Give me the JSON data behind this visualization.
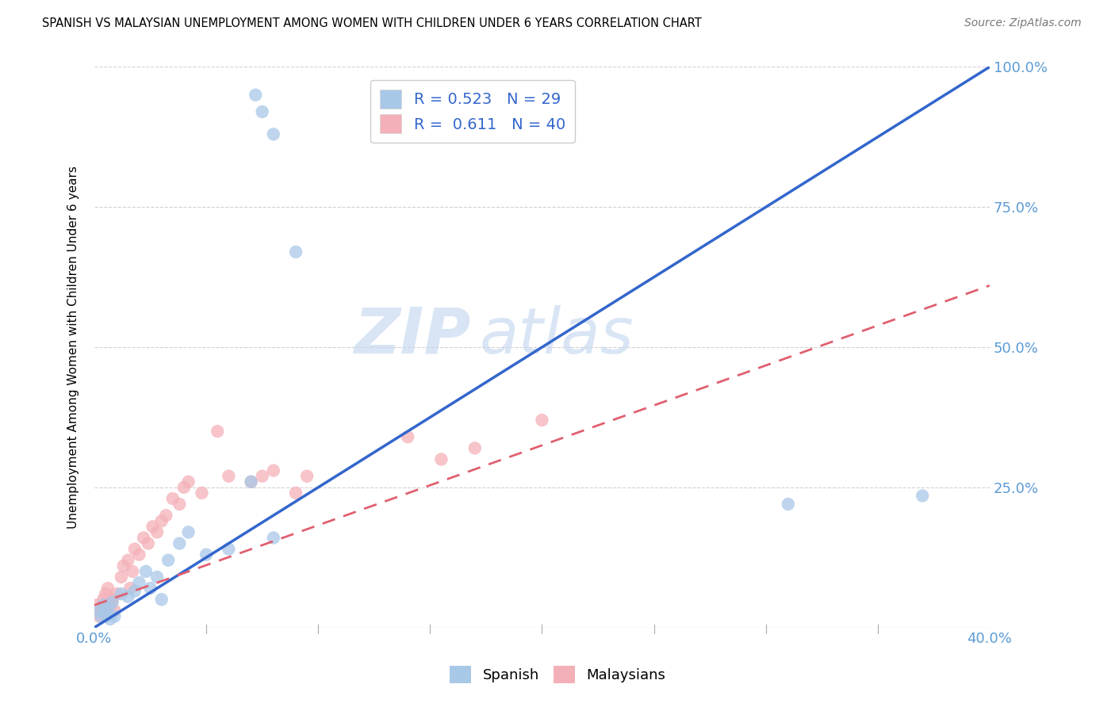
{
  "title": "SPANISH VS MALAYSIAN UNEMPLOYMENT AMONG WOMEN WITH CHILDREN UNDER 6 YEARS CORRELATION CHART",
  "source": "Source: ZipAtlas.com",
  "ylabel": "Unemployment Among Women with Children Under 6 years",
  "xlim": [
    0.0,
    0.4
  ],
  "ylim": [
    0.0,
    1.0
  ],
  "xticks": [
    0.0,
    0.05,
    0.1,
    0.15,
    0.2,
    0.25,
    0.3,
    0.35,
    0.4
  ],
  "yticks": [
    0.0,
    0.25,
    0.5,
    0.75,
    1.0
  ],
  "legend_R_blue": "0.523",
  "legend_N_blue": "29",
  "legend_R_pink": "0.611",
  "legend_N_pink": "40",
  "blue_scatter_color": "#a8c8e8",
  "pink_scatter_color": "#f4b0b8",
  "blue_line_color": "#3366cc",
  "pink_line_color": "#e06070",
  "tick_color": "#5b9bd5",
  "watermark_zip": "ZIP",
  "watermark_atlas": "atlas",
  "blue_line_x0": 0.0,
  "blue_line_y0": 0.0,
  "blue_line_x1": 0.4,
  "blue_line_y1": 1.0,
  "pink_line_x0": 0.0,
  "pink_line_y0": 0.04,
  "pink_line_x1": 0.4,
  "pink_line_y1": 0.61,
  "spanish_x": [
    0.002,
    0.003,
    0.004,
    0.005,
    0.006,
    0.007,
    0.008,
    0.009,
    0.012,
    0.015,
    0.018,
    0.02,
    0.023,
    0.025,
    0.028,
    0.03,
    0.033,
    0.038,
    0.042,
    0.05,
    0.06,
    0.07,
    0.08,
    0.09,
    0.072,
    0.075,
    0.08,
    0.31,
    0.37
  ],
  "spanish_y": [
    0.03,
    0.02,
    0.04,
    0.025,
    0.035,
    0.015,
    0.045,
    0.02,
    0.06,
    0.055,
    0.065,
    0.08,
    0.1,
    0.07,
    0.09,
    0.05,
    0.12,
    0.15,
    0.17,
    0.13,
    0.14,
    0.26,
    0.16,
    0.67,
    0.95,
    0.92,
    0.88,
    0.22,
    0.235
  ],
  "malaysian_x": [
    0.001,
    0.002,
    0.003,
    0.004,
    0.005,
    0.005,
    0.006,
    0.007,
    0.008,
    0.009,
    0.01,
    0.012,
    0.013,
    0.015,
    0.016,
    0.017,
    0.018,
    0.02,
    0.022,
    0.024,
    0.026,
    0.028,
    0.03,
    0.032,
    0.035,
    0.038,
    0.04,
    0.042,
    0.048,
    0.055,
    0.06,
    0.07,
    0.075,
    0.08,
    0.09,
    0.095,
    0.14,
    0.155,
    0.17,
    0.2
  ],
  "malaysian_y": [
    0.04,
    0.02,
    0.03,
    0.05,
    0.06,
    0.02,
    0.07,
    0.04,
    0.05,
    0.03,
    0.06,
    0.09,
    0.11,
    0.12,
    0.07,
    0.1,
    0.14,
    0.13,
    0.16,
    0.15,
    0.18,
    0.17,
    0.19,
    0.2,
    0.23,
    0.22,
    0.25,
    0.26,
    0.24,
    0.35,
    0.27,
    0.26,
    0.27,
    0.28,
    0.24,
    0.27,
    0.34,
    0.3,
    0.32,
    0.37
  ]
}
